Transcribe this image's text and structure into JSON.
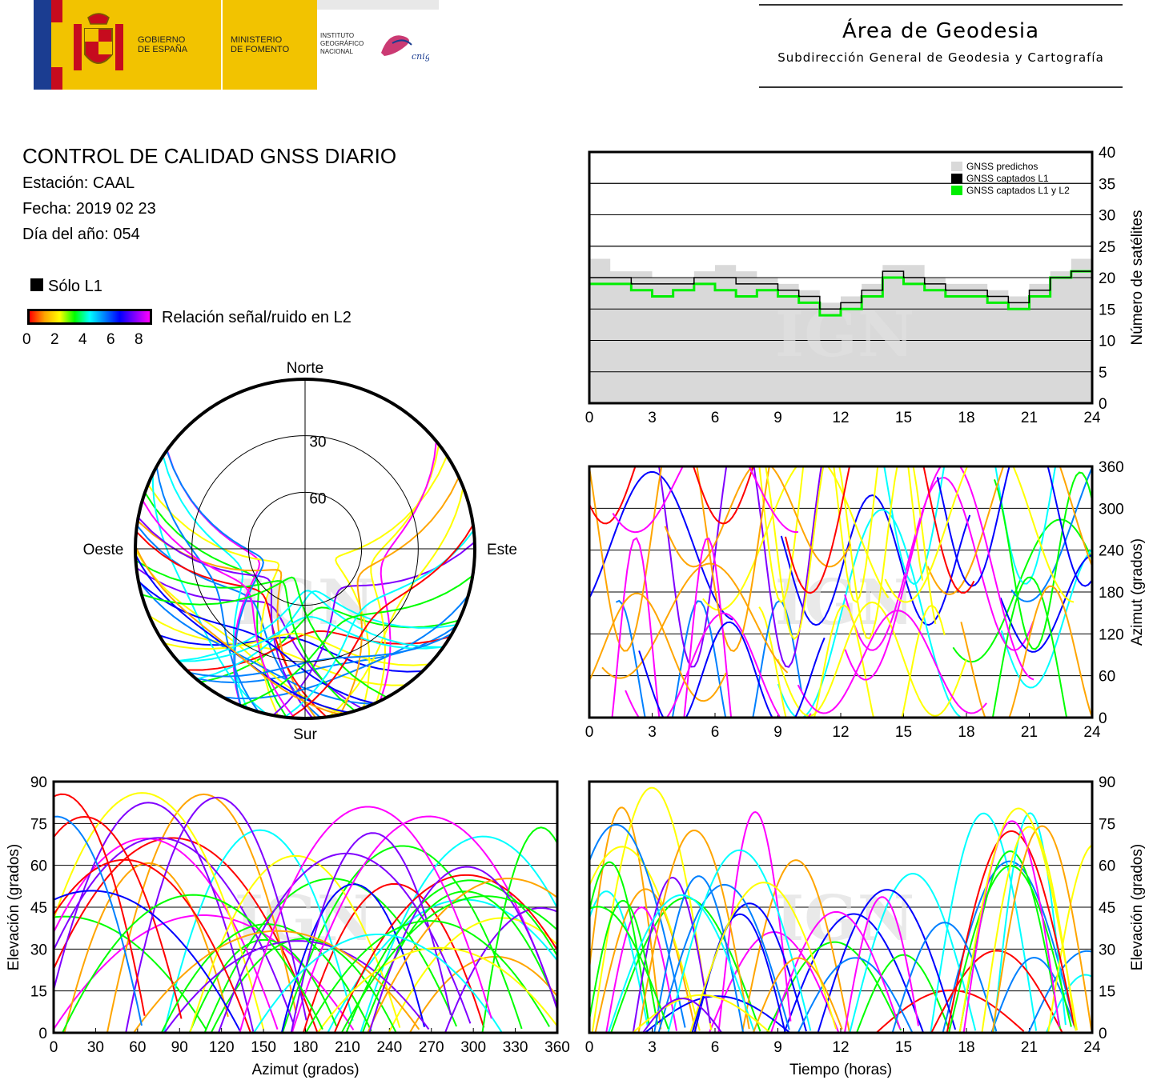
{
  "header": {
    "gov_label_1": "GOBIERNO",
    "gov_label_2": "DE ESPAÑA",
    "min_label_1": "MINISTERIO",
    "min_label_2": "DE FOMENTO",
    "ign_label_1": "INSTITUTO",
    "ign_label_2": "GEOGRÁFICO",
    "ign_label_3": "NACIONAL",
    "cnig_label": "cnig",
    "title": "Área de Geodesia",
    "subtitle": "Subdirección General de Geodesia y Cartografía"
  },
  "info": {
    "title": "CONTROL DE CALIDAD GNSS DIARIO",
    "station": "Estación: CAAL",
    "date": "Fecha: 2019 02 23",
    "doy": "Día del año: 054",
    "l1_only": "Sólo L1",
    "snr_label": "Relación señal/ruido en L2",
    "snr_ticks": [
      "0",
      "2",
      "4",
      "6",
      "8"
    ]
  },
  "watermark": "IGN",
  "colors": {
    "predicted": "#d9d9d9",
    "l1": "#000000",
    "l1l2": "#00ee00",
    "snr_scale": [
      "#ff0000",
      "#ffa500",
      "#ffff00",
      "#00ff00",
      "#00ffff",
      "#0080ff",
      "#0000ff",
      "#8000ff",
      "#ff00ff"
    ]
  },
  "chart_data": [
    {
      "type": "line",
      "name": "satellite-count",
      "legend": [
        "GNSS predichos",
        "GNSS captados L1",
        "GNSS captados L1 y L2"
      ],
      "xlim": [
        0,
        24
      ],
      "ylim": [
        0,
        40
      ],
      "xticks": [
        "0",
        "3",
        "6",
        "9",
        "12",
        "15",
        "18",
        "21",
        "24"
      ],
      "yticks": [
        "0",
        "5",
        "10",
        "15",
        "20",
        "25",
        "30",
        "35",
        "40"
      ],
      "ylabel": "Número de satélites",
      "x": [
        0,
        1,
        2,
        3,
        4,
        5,
        6,
        7,
        8,
        9,
        10,
        11,
        12,
        13,
        14,
        15,
        16,
        17,
        18,
        19,
        20,
        21,
        22,
        23,
        24
      ],
      "series": [
        {
          "name": "GNSS predichos",
          "values": [
            23,
            21,
            21,
            20,
            20,
            21,
            22,
            21,
            20,
            19,
            18,
            16,
            17,
            19,
            22,
            22,
            20,
            19,
            19,
            18,
            17,
            19,
            21,
            23,
            23
          ]
        },
        {
          "name": "GNSS captados L1",
          "values": [
            20,
            20,
            19,
            19,
            19,
            20,
            20,
            19,
            19,
            18,
            17,
            15,
            16,
            18,
            21,
            20,
            19,
            18,
            18,
            17,
            16,
            18,
            20,
            21,
            21
          ]
        },
        {
          "name": "GNSS captados L1 y L2",
          "values": [
            19,
            19,
            18,
            17,
            18,
            19,
            18,
            17,
            18,
            17,
            16,
            14,
            15,
            17,
            20,
            19,
            18,
            17,
            17,
            16,
            15,
            17,
            20,
            21,
            20
          ]
        }
      ]
    },
    {
      "type": "scatter",
      "name": "azimuth-vs-time",
      "xlim": [
        0,
        24
      ],
      "ylim": [
        0,
        360
      ],
      "xticks": [
        "0",
        "3",
        "6",
        "9",
        "12",
        "15",
        "18",
        "21",
        "24"
      ],
      "yticks": [
        "0",
        "60",
        "120",
        "180",
        "240",
        "300",
        "360"
      ],
      "ylabel": "Azimut (grados)"
    },
    {
      "type": "scatter",
      "name": "skyplot",
      "cardinals": [
        "Norte",
        "Este",
        "Sur",
        "Oeste"
      ],
      "ring_labels": [
        "30",
        "60"
      ]
    },
    {
      "type": "scatter",
      "name": "elevation-vs-azimuth",
      "xlim": [
        0,
        360
      ],
      "ylim": [
        0,
        90
      ],
      "xticks": [
        "0",
        "30",
        "60",
        "90",
        "120",
        "150",
        "180",
        "210",
        "240",
        "270",
        "300",
        "330",
        "360"
      ],
      "yticks": [
        "0",
        "15",
        "30",
        "45",
        "60",
        "75",
        "90"
      ],
      "xlabel": "Azimut (grados)",
      "ylabel": "Elevación (grados)"
    },
    {
      "type": "scatter",
      "name": "elevation-vs-time",
      "xlim": [
        0,
        24
      ],
      "ylim": [
        0,
        90
      ],
      "xticks": [
        "0",
        "3",
        "6",
        "9",
        "12",
        "15",
        "18",
        "21",
        "24"
      ],
      "yticks": [
        "0",
        "15",
        "30",
        "45",
        "60",
        "75",
        "90"
      ],
      "xlabel": "Tiempo (horas)",
      "ylabel": "Elevación (grados)"
    }
  ]
}
